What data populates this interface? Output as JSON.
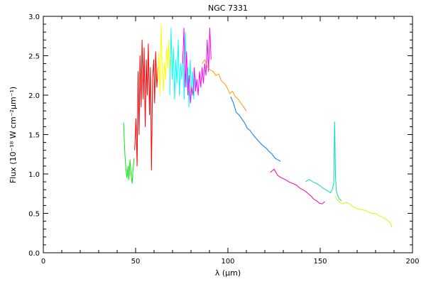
{
  "chart_data": {
    "type": "line",
    "title": "NGC 7331",
    "xlabel": "λ (μm)",
    "ylabel": "Flux (10⁻¹⁸ W cm⁻²μm⁻¹)",
    "xlim": [
      0,
      200
    ],
    "ylim": [
      0,
      3.0
    ],
    "xticks": [
      0,
      50,
      100,
      150,
      200
    ],
    "xtick_labels": [
      "0",
      "50",
      "100",
      "150",
      "200"
    ],
    "yticks": [
      0,
      0.5,
      1.0,
      1.5,
      2.0,
      2.5,
      3.0
    ],
    "ytick_labels": [
      "0.0",
      "0.5",
      "1.0",
      "1.5",
      "2.0",
      "2.5",
      "3.0"
    ],
    "grid": false,
    "legend": "none",
    "series": [
      {
        "color": "#00ee00",
        "x": [
          43.5,
          44.2,
          44.8,
          45.3,
          45.9,
          46.4,
          47.0,
          47.5,
          48.1,
          48.6,
          49.2
        ],
        "y": [
          1.65,
          1.25,
          1.05,
          0.95,
          1.1,
          0.93,
          1.18,
          1.0,
          0.88,
          1.06,
          1.2
        ]
      },
      {
        "color": "#ff0000",
        "x": [
          49.5,
          50.2,
          50.8,
          51.3,
          51.9,
          52.4,
          53.0,
          53.5,
          54.1,
          54.6,
          55.2,
          55.8,
          56.3,
          56.9,
          57.5,
          58.0,
          58.6,
          59.2,
          59.8,
          60.3,
          60.9,
          61.5,
          62.1
        ],
        "y": [
          1.3,
          1.7,
          1.1,
          2.3,
          1.5,
          2.5,
          1.85,
          2.7,
          1.95,
          2.6,
          1.6,
          2.45,
          2.0,
          2.65,
          1.75,
          2.35,
          1.05,
          2.2,
          2.45,
          1.9,
          2.55,
          2.1,
          2.35
        ]
      },
      {
        "color": "#ffff00",
        "x": [
          62.0,
          62.6,
          63.2,
          63.8,
          64.4,
          65.0,
          65.6,
          66.2,
          66.8,
          67.4,
          68.0,
          68.6,
          69.2
        ],
        "y": [
          2.2,
          2.55,
          2.0,
          2.9,
          2.3,
          2.05,
          2.4,
          2.2,
          2.6,
          2.35,
          2.7,
          2.25,
          2.45
        ]
      },
      {
        "color": "#00ffff",
        "x": [
          68.5,
          69.2,
          69.8,
          70.5,
          71.1,
          71.8,
          72.4,
          73.1,
          73.7,
          74.4,
          75.0,
          75.7,
          76.3,
          77.0,
          77.6,
          78.3,
          78.9,
          79.6,
          80.2,
          80.9,
          81.5,
          82.2,
          82.8
        ],
        "y": [
          2.0,
          2.85,
          2.2,
          2.6,
          1.95,
          2.45,
          2.15,
          2.7,
          2.0,
          2.4,
          2.2,
          2.55,
          1.95,
          2.8,
          2.1,
          2.35,
          1.85,
          2.45,
          2.0,
          2.3,
          1.95,
          2.25,
          2.1
        ]
      },
      {
        "color": "#ff00ff",
        "x": [
          75.5,
          76.2,
          76.9,
          77.6,
          78.3,
          79.0,
          79.7,
          80.4,
          81.1,
          81.8,
          82.5,
          83.2,
          83.9,
          84.6,
          85.3,
          86.0,
          86.7,
          87.4,
          88.1,
          88.8,
          89.5,
          90.2,
          90.9
        ],
        "y": [
          2.4,
          2.85,
          2.1,
          2.55,
          2.0,
          2.25,
          1.9,
          2.1,
          2.0,
          2.35,
          2.05,
          2.2,
          2.0,
          2.3,
          2.1,
          2.35,
          2.15,
          2.4,
          2.25,
          2.7,
          2.3,
          2.85,
          2.45
        ]
      },
      {
        "color": "#ff9900",
        "x": [
          86.0,
          87.5,
          89.0,
          90.5,
          92.0,
          93.5,
          95.0,
          96.5,
          98.0,
          99.5,
          101.0,
          102.5,
          104.0,
          105.5,
          107.0,
          108.5,
          110.0
        ],
        "y": [
          2.4,
          2.45,
          2.35,
          2.32,
          2.3,
          2.25,
          2.27,
          2.18,
          2.15,
          2.1,
          2.02,
          2.05,
          1.98,
          1.95,
          1.9,
          1.85,
          1.8
        ]
      },
      {
        "color": "#0077ee",
        "x": [
          101.5,
          103.0,
          104.5,
          106.0,
          107.5,
          109.0,
          110.5,
          112.0,
          113.5,
          115.0,
          116.5,
          118.0,
          119.5,
          121.0,
          122.5,
          124.0,
          125.5,
          127.0,
          128.5
        ],
        "y": [
          1.98,
          1.9,
          1.78,
          1.75,
          1.7,
          1.65,
          1.58,
          1.55,
          1.5,
          1.46,
          1.42,
          1.38,
          1.35,
          1.32,
          1.28,
          1.25,
          1.2,
          1.18,
          1.16
        ]
      },
      {
        "color": "#ee00aa",
        "x": [
          123.0,
          125.0,
          127.0,
          129.0,
          131.0,
          133.0,
          135.0,
          137.0,
          139.0,
          140.5,
          142.0,
          143.5,
          145.0,
          146.5,
          148.0,
          149.5,
          151.0,
          152.5
        ],
        "y": [
          1.02,
          1.06,
          0.98,
          0.95,
          0.93,
          0.9,
          0.88,
          0.86,
          0.82,
          0.8,
          0.78,
          0.75,
          0.72,
          0.68,
          0.66,
          0.63,
          0.62,
          0.65
        ]
      },
      {
        "color": "#00ddbb",
        "x": [
          142.0,
          144.0,
          146.0,
          148.0,
          150.0,
          151.5,
          153.0,
          154.5,
          155.5,
          156.5,
          157.3,
          157.8,
          158.3,
          158.8,
          159.5,
          160.5,
          161.5
        ],
        "y": [
          0.9,
          0.93,
          0.9,
          0.88,
          0.85,
          0.82,
          0.8,
          0.78,
          0.76,
          0.8,
          0.88,
          1.66,
          0.95,
          0.78,
          0.72,
          0.68,
          0.66
        ]
      },
      {
        "color": "#ccff00",
        "x": [
          158.0,
          160.0,
          162.0,
          164.0,
          166.0,
          168.0,
          170.0,
          172.0,
          174.0,
          176.0,
          178.0,
          180.0,
          182.0,
          184.0,
          186.0,
          188.0,
          188.8
        ],
        "y": [
          0.72,
          0.65,
          0.62,
          0.64,
          0.62,
          0.58,
          0.56,
          0.55,
          0.54,
          0.52,
          0.5,
          0.5,
          0.47,
          0.45,
          0.42,
          0.38,
          0.32
        ]
      }
    ]
  }
}
